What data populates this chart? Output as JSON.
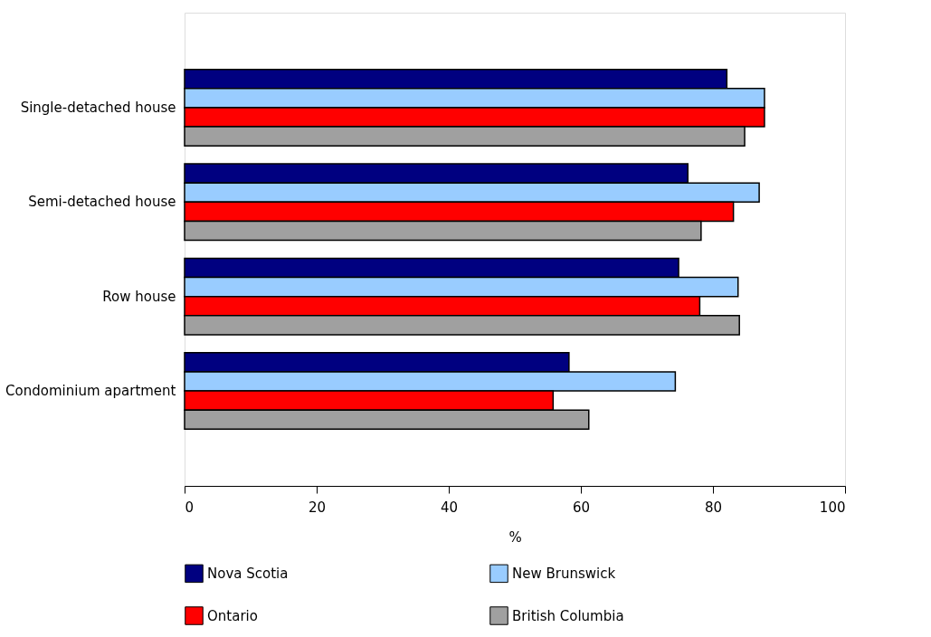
{
  "chart_data": {
    "type": "bar",
    "orientation": "horizontal",
    "xlabel": "%",
    "categories": [
      "Single-detached house",
      "Semi-detached house",
      "Row house",
      "Condominium apartment"
    ],
    "series": [
      {
        "name": "Nova Scotia",
        "color": "#000080",
        "values": [
          82.1,
          76.2,
          74.8,
          58.2
        ]
      },
      {
        "name": "New Brunswick",
        "color": "#99ccff",
        "values": [
          87.8,
          87.0,
          83.8,
          74.3
        ]
      },
      {
        "name": "Ontario",
        "color": "#ff0000",
        "values": [
          87.8,
          83.1,
          78.0,
          55.8
        ]
      },
      {
        "name": "British Columbia",
        "color": "#a0a0a0",
        "values": [
          84.8,
          78.2,
          84.0,
          61.2
        ]
      }
    ],
    "xlim": [
      0,
      100
    ],
    "xticks": [
      0,
      20,
      40,
      60,
      80,
      100
    ],
    "grid": false,
    "legend": "bottom"
  }
}
